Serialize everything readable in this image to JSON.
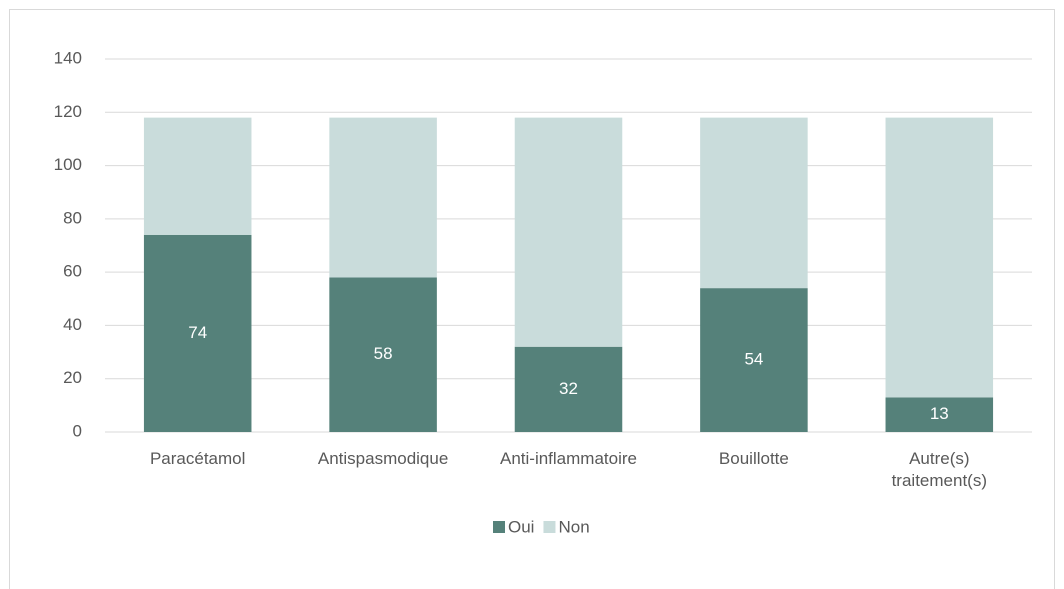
{
  "chart_data": {
    "type": "stacked_bar",
    "categories": [
      "Paracétamol",
      "Antispasmodique",
      "Anti-inflammatoire",
      "Bouillotte",
      "Autre(s) traitement(s)"
    ],
    "series": [
      {
        "name": "Oui",
        "color": "#55817a",
        "values": [
          74,
          58,
          32,
          54,
          13
        ]
      },
      {
        "name": "Non",
        "color": "#c9dcdb",
        "values": [
          44,
          60,
          86,
          64,
          105
        ]
      }
    ],
    "ylim": [
      0,
      140
    ],
    "yticks": [
      0,
      20,
      40,
      60,
      80,
      100,
      120,
      140
    ],
    "grid": true,
    "legend": "bottom"
  }
}
